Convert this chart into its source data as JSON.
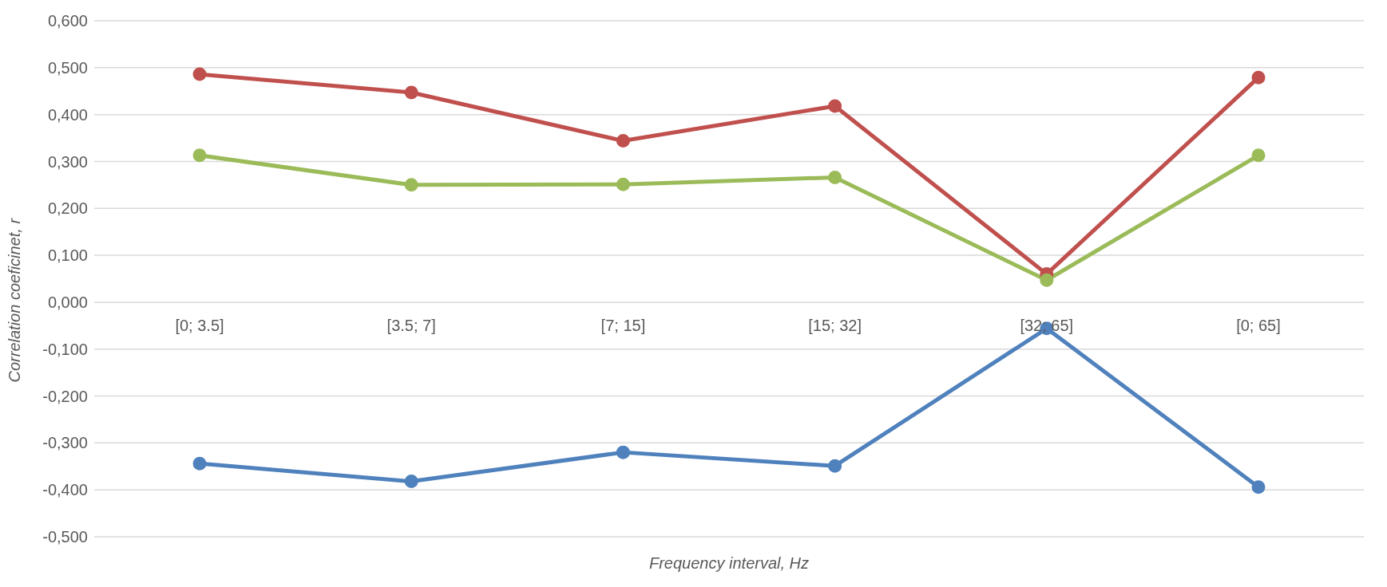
{
  "chart_data": {
    "type": "line",
    "xlabel": "Frequency interval, Hz",
    "ylabel": "Correlation coeficinet, r",
    "categories": [
      "[0; 3.5]",
      "[3.5; 7]",
      "[7; 15]",
      "[15; 32]",
      "[32; 65]",
      "[0; 65]"
    ],
    "series": [
      {
        "color": "#c0504d",
        "values": [
          0.486,
          0.447,
          0.344,
          0.418,
          0.06,
          0.479
        ]
      },
      {
        "color": "#9bbb59",
        "values": [
          0.313,
          0.25,
          0.251,
          0.266,
          0.047,
          0.313
        ]
      },
      {
        "color": "#4f81bd",
        "values": [
          -0.344,
          -0.382,
          -0.32,
          -0.349,
          -0.056,
          -0.394
        ]
      }
    ],
    "ylim": [
      -0.5,
      0.6
    ],
    "yticks": [
      {
        "value": -0.5,
        "label": "-0,500"
      },
      {
        "value": -0.4,
        "label": "-0,400"
      },
      {
        "value": -0.3,
        "label": "-0,300"
      },
      {
        "value": -0.2,
        "label": "-0,200"
      },
      {
        "value": -0.1,
        "label": "-0,100"
      },
      {
        "value": 0,
        "label": "0,000"
      },
      {
        "value": 0.1,
        "label": "0,100"
      },
      {
        "value": 0.2,
        "label": "0,200"
      },
      {
        "value": 0.3,
        "label": "0,300"
      },
      {
        "value": 0.4,
        "label": "0,400"
      },
      {
        "value": 0.5,
        "label": "0,500"
      },
      {
        "value": 0.6,
        "label": "0,600"
      }
    ],
    "grid": "y",
    "legend": false,
    "marker": "circle",
    "line_style": "solid"
  }
}
